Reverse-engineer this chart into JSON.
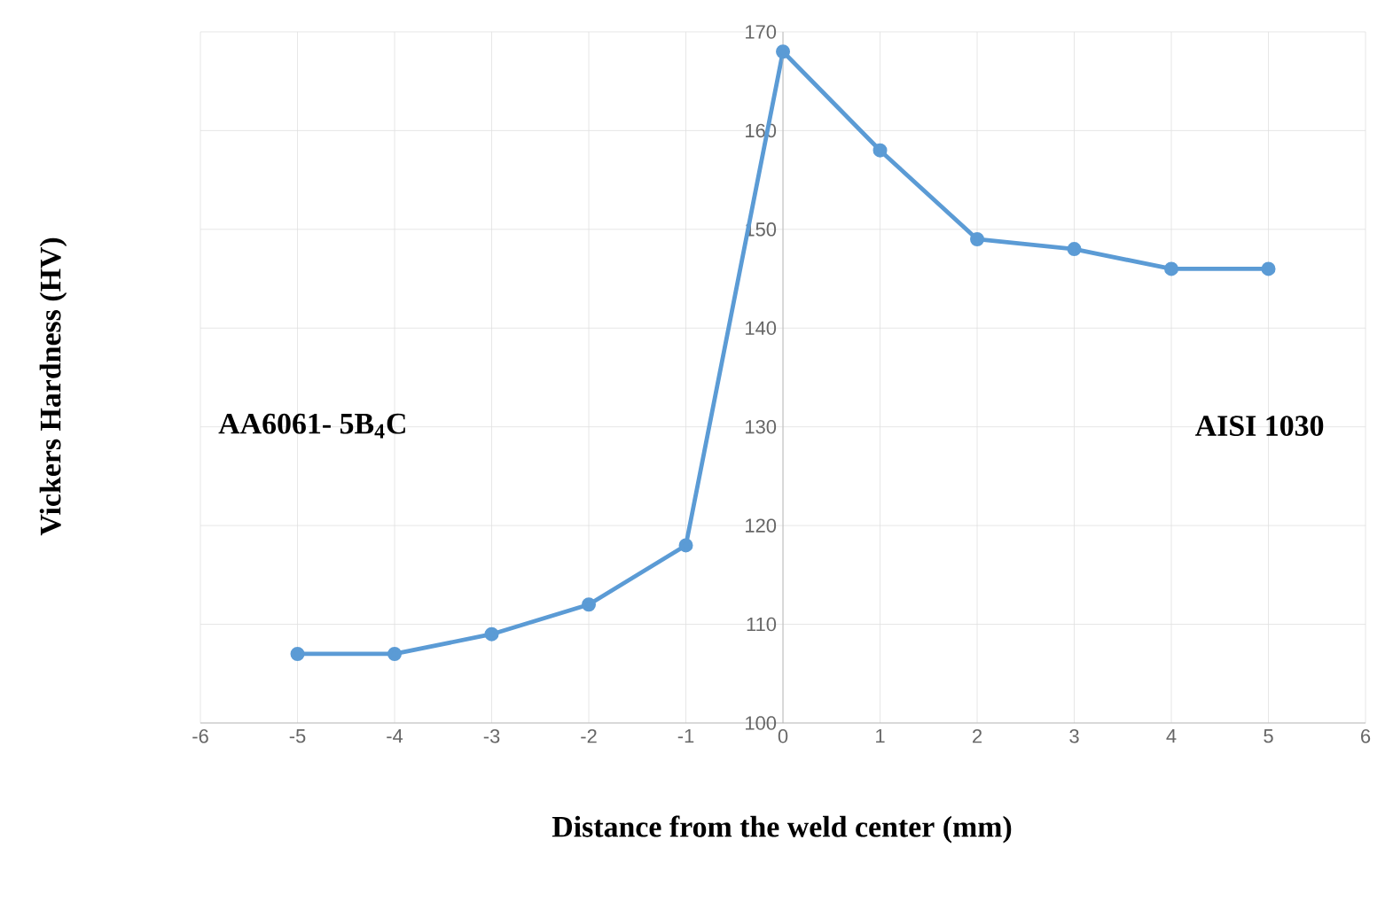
{
  "chart_data": {
    "type": "line",
    "xlabel": "Distance from the weld center (mm)",
    "ylabel": "Vickers Hardness (HV)",
    "x": [
      -5,
      -4,
      -3,
      -2,
      -1,
      0,
      1,
      2,
      3,
      4,
      5
    ],
    "series": [
      {
        "color": "#5b9bd5",
        "values": [
          107,
          107,
          109,
          112,
          118,
          168,
          158,
          149,
          148,
          146,
          146
        ]
      }
    ],
    "xlim": [
      -6,
      6
    ],
    "xticks": [
      -6,
      -5,
      -4,
      -3,
      -2,
      -1,
      0,
      1,
      2,
      3,
      4,
      5,
      6
    ],
    "ylim": [
      100,
      170
    ],
    "yticks": [
      100,
      110,
      120,
      130,
      140,
      150,
      160,
      170
    ],
    "grid": true,
    "marker": "circle",
    "line_style": "solid",
    "annotations": [
      "AA6061- 5B$_{4}$C",
      "AISI 1030"
    ]
  }
}
